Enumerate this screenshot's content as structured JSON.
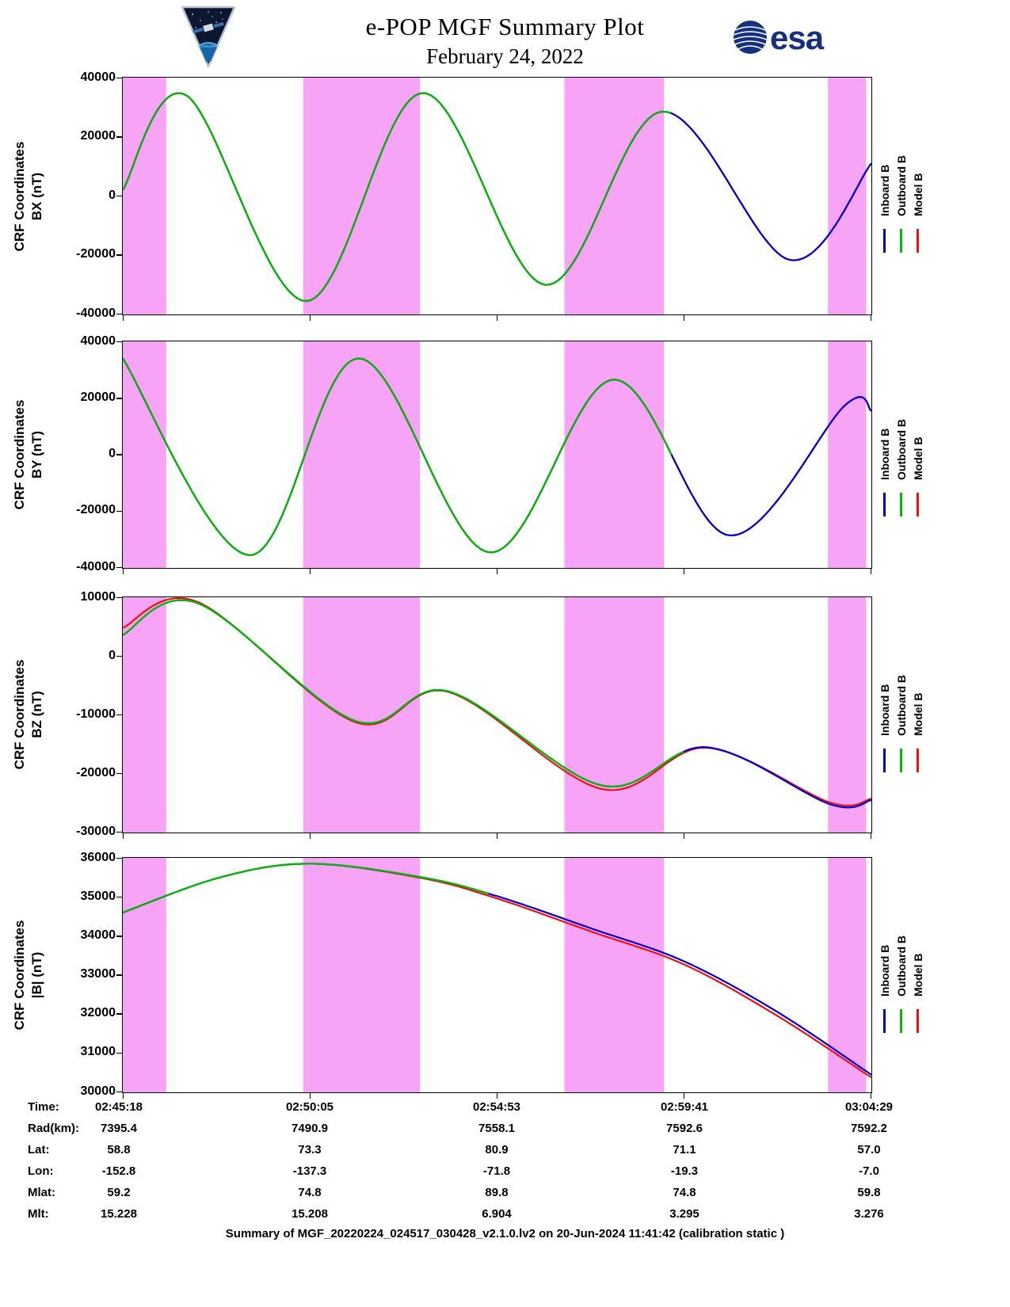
{
  "header": {
    "title_line1": "e-POP MGF Summary Plot",
    "title_line2": "February 24, 2022",
    "esa_logo_text": "esa"
  },
  "legend": {
    "items": [
      {
        "label": "Inboard B",
        "color": "#0000cc"
      },
      {
        "label": "Outboard B",
        "color": "#00bb00"
      },
      {
        "label": "Model B",
        "color": "#ee1111"
      }
    ]
  },
  "colors": {
    "band": "#f7a4f7",
    "axis": "#000000",
    "esa_blue": "#16307e"
  },
  "chart_data": {
    "type": "line",
    "title": "e-POP MGF Summary Plot",
    "subtitle": "February 24, 2022",
    "x_axis": {
      "tick_positions": [
        0,
        0.25,
        0.5,
        0.75,
        1
      ],
      "tick_times": [
        "02:45:18",
        "02:50:05",
        "02:54:53",
        "02:59:41",
        "03:04:29"
      ]
    },
    "bands": [
      [
        0,
        0.058
      ],
      [
        0.241,
        0.397
      ],
      [
        0.59,
        0.723
      ],
      [
        0.942,
        0.993
      ]
    ],
    "band_color": "#f7a4f7",
    "panels": [
      {
        "name": "bx",
        "ylabel_line1": "CRF Coordinates",
        "ylabel_line2": "BX (nT)",
        "ylim": [
          -40000,
          40000
        ],
        "yticks": [
          {
            "v": 40000,
            "label": "40000"
          },
          {
            "v": 20000,
            "label": "20000"
          },
          {
            "v": 0,
            "label": "0"
          },
          {
            "v": -20000,
            "label": "-20000"
          },
          {
            "v": -40000,
            "label": "-40000"
          }
        ],
        "series": [
          {
            "name": "model",
            "color": "#ee1111",
            "points": [
              [
                0,
                2000
              ],
              [
                0.085,
                34000
              ],
              [
                0.245,
                -35500
              ],
              [
                0.4,
                34800
              ],
              [
                0.565,
                -30000
              ],
              [
                0.72,
                28500
              ],
              [
                0.89,
                -21500
              ],
              [
                1,
                11000
              ]
            ]
          },
          {
            "name": "inboard",
            "color": "#0000cc",
            "points": [
              [
                0,
                2000
              ],
              [
                0.085,
                34000
              ],
              [
                0.245,
                -35500
              ],
              [
                0.4,
                34800
              ],
              [
                0.565,
                -30000
              ],
              [
                0.72,
                28500
              ],
              [
                0.89,
                -21500
              ],
              [
                1,
                11000
              ]
            ]
          },
          {
            "name": "outboard",
            "color": "#00bb00",
            "xmax": 0.737,
            "points": [
              [
                0,
                2000
              ],
              [
                0.085,
                34000
              ],
              [
                0.245,
                -35500
              ],
              [
                0.4,
                34800
              ],
              [
                0.565,
                -30000
              ],
              [
                0.72,
                28500
              ],
              [
                0.89,
                -21500
              ],
              [
                1,
                11000
              ]
            ]
          }
        ]
      },
      {
        "name": "by",
        "ylabel_line1": "CRF Coordinates",
        "ylabel_line2": "BY (nT)",
        "ylim": [
          -40000,
          40000
        ],
        "yticks": [
          {
            "v": 40000,
            "label": "40000"
          },
          {
            "v": 20000,
            "label": "20000"
          },
          {
            "v": 0,
            "label": "0"
          },
          {
            "v": -20000,
            "label": "-20000"
          },
          {
            "v": -40000,
            "label": "-40000"
          }
        ],
        "series": [
          {
            "name": "model",
            "color": "#ee1111",
            "points": [
              [
                0,
                34000
              ],
              [
                0.17,
                -35500
              ],
              [
                0.315,
                34000
              ],
              [
                0.49,
                -34500
              ],
              [
                0.655,
                26500
              ],
              [
                0.81,
                -28500
              ],
              [
                0.965,
                17500
              ],
              [
                1,
                15500
              ]
            ]
          },
          {
            "name": "inboard",
            "color": "#0000cc",
            "points": [
              [
                0,
                34000
              ],
              [
                0.17,
                -35500
              ],
              [
                0.315,
                34000
              ],
              [
                0.49,
                -34500
              ],
              [
                0.655,
                26500
              ],
              [
                0.81,
                -28500
              ],
              [
                0.965,
                17500
              ],
              [
                1,
                15500
              ]
            ]
          },
          {
            "name": "outboard",
            "color": "#00bb00",
            "xmax": 0.735,
            "points": [
              [
                0,
                34000
              ],
              [
                0.17,
                -35500
              ],
              [
                0.315,
                34000
              ],
              [
                0.49,
                -34500
              ],
              [
                0.655,
                26500
              ],
              [
                0.81,
                -28500
              ],
              [
                0.965,
                17500
              ],
              [
                1,
                15500
              ]
            ]
          }
        ]
      },
      {
        "name": "bz",
        "ylabel_line1": "CRF Coordinates",
        "ylabel_line2": "BZ (nT)",
        "ylim": [
          -30000,
          10000
        ],
        "yticks": [
          {
            "v": 10000,
            "label": "10000"
          },
          {
            "v": 0,
            "label": "0"
          },
          {
            "v": -10000,
            "label": "-10000"
          },
          {
            "v": -20000,
            "label": "-20000"
          },
          {
            "v": -30000,
            "label": "-30000"
          }
        ],
        "series": [
          {
            "name": "model",
            "color": "#ee1111",
            "points": [
              [
                0,
                4800
              ],
              [
                0.1,
                9200
              ],
              [
                0.31,
                -11200
              ],
              [
                0.435,
                -6100
              ],
              [
                0.64,
                -22600
              ],
              [
                0.78,
                -15600
              ],
              [
                0.945,
                -24900
              ],
              [
                1,
                -24250
              ]
            ]
          },
          {
            "name": "inboard",
            "color": "#0000cc",
            "points": [
              [
                0,
                3600
              ],
              [
                0.1,
                9000
              ],
              [
                0.31,
                -11000
              ],
              [
                0.435,
                -6000
              ],
              [
                0.64,
                -22000
              ],
              [
                0.78,
                -15500
              ],
              [
                0.945,
                -25200
              ],
              [
                1,
                -24500
              ]
            ]
          },
          {
            "name": "outboard",
            "color": "#00bb00",
            "xmax": 0.75,
            "points": [
              [
                0,
                3600
              ],
              [
                0.1,
                9000
              ],
              [
                0.31,
                -11000
              ],
              [
                0.435,
                -6000
              ],
              [
                0.64,
                -22000
              ],
              [
                0.78,
                -15500
              ],
              [
                0.945,
                -25200
              ],
              [
                1,
                -24500
              ]
            ]
          }
        ]
      },
      {
        "name": "bmag",
        "ylabel_line1": "CRF Coordinates",
        "ylabel_line2": "|B| (nT)",
        "ylim": [
          30000,
          36000
        ],
        "yticks": [
          {
            "v": 36000,
            "label": "36000"
          },
          {
            "v": 35000,
            "label": "35000"
          },
          {
            "v": 34000,
            "label": "34000"
          },
          {
            "v": 33000,
            "label": "33000"
          },
          {
            "v": 32000,
            "label": "32000"
          },
          {
            "v": 31000,
            "label": "31000"
          },
          {
            "v": 30000,
            "label": "30000"
          }
        ],
        "series": [
          {
            "name": "model",
            "color": "#ee1111",
            "points": [
              [
                0,
                34600
              ],
              [
                0.13,
                35500
              ],
              [
                0.25,
                35850
              ],
              [
                0.4,
                35480
              ],
              [
                0.5,
                34960
              ],
              [
                0.625,
                34120
              ],
              [
                0.75,
                33270
              ],
              [
                0.875,
                31950
              ],
              [
                1,
                30380
              ]
            ]
          },
          {
            "name": "inboard",
            "color": "#0000cc",
            "points": [
              [
                0,
                34600
              ],
              [
                0.13,
                35500
              ],
              [
                0.25,
                35850
              ],
              [
                0.4,
                35500
              ],
              [
                0.5,
                35020
              ],
              [
                0.625,
                34200
              ],
              [
                0.75,
                33350
              ],
              [
                0.875,
                32050
              ],
              [
                1,
                30450
              ]
            ]
          },
          {
            "name": "outboard",
            "color": "#00bb00",
            "xmax": 0.49,
            "points": [
              [
                0,
                34600
              ],
              [
                0.13,
                35500
              ],
              [
                0.25,
                35850
              ],
              [
                0.4,
                35500
              ],
              [
                0.5,
                35020
              ],
              [
                0.625,
                34200
              ],
              [
                0.75,
                33350
              ],
              [
                0.875,
                32050
              ],
              [
                1,
                30450
              ]
            ]
          }
        ]
      }
    ]
  },
  "table": {
    "rows": [
      {
        "label": "Time:",
        "values": [
          "02:45:18",
          "02:50:05",
          "02:54:53",
          "02:59:41",
          "03:04:29"
        ]
      },
      {
        "label": "Rad(km):",
        "values": [
          "7395.4",
          "7490.9",
          "7558.1",
          "7592.6",
          "7592.2"
        ]
      },
      {
        "label": "Lat:",
        "values": [
          "58.8",
          "73.3",
          "80.9",
          "71.1",
          "57.0"
        ]
      },
      {
        "label": "Lon:",
        "values": [
          "-152.8",
          "-137.3",
          "-71.8",
          "-19.3",
          "-7.0"
        ]
      },
      {
        "label": "Mlat:",
        "values": [
          "59.2",
          "74.8",
          "89.8",
          "74.8",
          "59.8"
        ]
      },
      {
        "label": "Mlt:",
        "values": [
          "15.228",
          "15.208",
          "6.904",
          "3.295",
          "3.276"
        ]
      }
    ]
  },
  "footer": {
    "caption": "Summary of MGF_20220224_024517_030428_v2.1.0.lv2 on 20-Jun-2024 11:41:42 (calibration static )"
  }
}
